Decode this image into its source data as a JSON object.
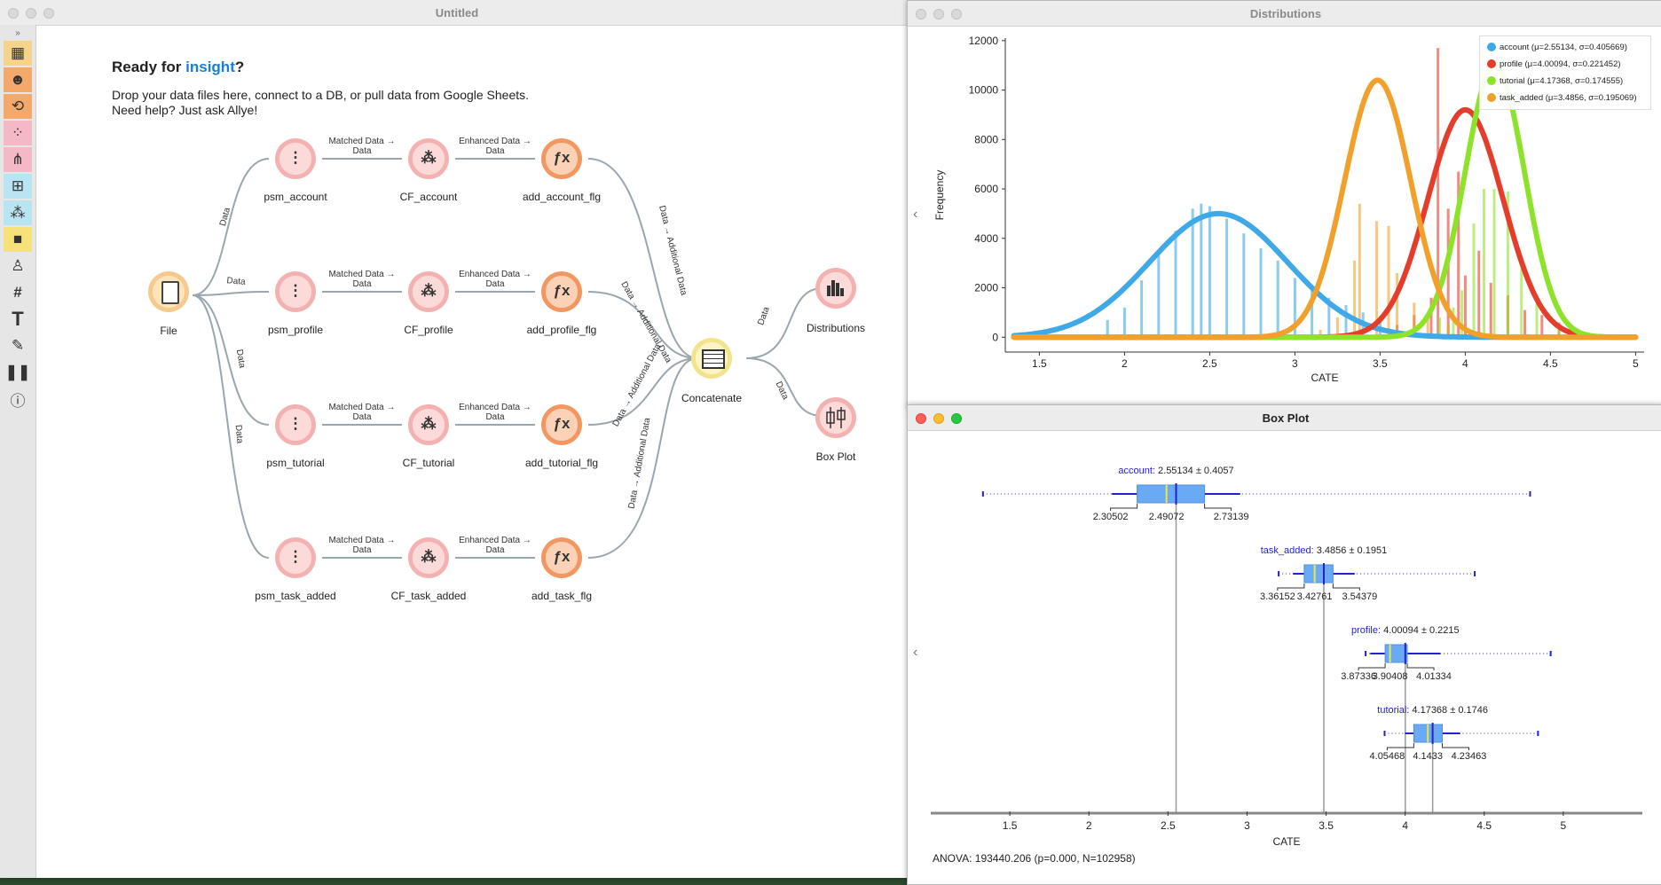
{
  "canvas_window": {
    "title": "Untitled",
    "welcome": {
      "title_prefix": "Ready for ",
      "title_accent": "insight",
      "title_suffix": "?",
      "line1": "Drop your data files here, connect to a DB, or pull data from Google Sheets.",
      "line2": "Need help? Just ask Allye!"
    },
    "toolbar_icons": [
      "expand-icon",
      "table-icon",
      "avatar-icon",
      "transform-icon",
      "scatter-icon",
      "tree-icon",
      "grid-icon",
      "cluster-icon",
      "cube-icon",
      "person-icon",
      "hash-icon",
      "text-icon",
      "pen-icon",
      "pause-icon",
      "help-icon"
    ],
    "nodes": {
      "file": "File",
      "psm_account": "psm_account",
      "cf_account": "CF_account",
      "add_account": "add_account_flg",
      "psm_profile": "psm_profile",
      "cf_profile": "CF_profile",
      "add_profile": "add_profile_flg",
      "psm_tutorial": "psm_tutorial",
      "cf_tutorial": "CF_tutorial",
      "add_tutorial": "add_tutorial_flg",
      "psm_task": "psm_task_added",
      "cf_task": "CF_task_added",
      "add_task": "add_task_flg",
      "concatenate": "Concatenate",
      "distributions": "Distributions",
      "boxplot": "Box Plot"
    },
    "edge_labels": {
      "data": "Data",
      "matched_1": "Matched Data →",
      "matched_2": "Data",
      "enhanced_1": "Enhanced Data →",
      "enhanced_2": "Data",
      "additional": "Data → Additional Data"
    }
  },
  "distributions_window": {
    "title": "Distributions",
    "chart_data": {
      "type": "bar",
      "xlabel": "CATE",
      "ylabel": "Frequency",
      "xlim": [
        1.3,
        5.05
      ],
      "ylim": [
        -600,
        12100
      ],
      "xticks": [
        1.5,
        2,
        2.5,
        3,
        3.5,
        4,
        4.5,
        5
      ],
      "yticks": [
        0,
        2000,
        4000,
        6000,
        8000,
        10000,
        12000
      ],
      "legend_position": "top-right",
      "series": [
        {
          "name": "account (μ=2.55134, σ=0.405669)",
          "color": "#3fa9e8",
          "mu": 2.55134,
          "sigma": 0.405669,
          "peak": 5000,
          "bars": [
            [
              1.9,
              700
            ],
            [
              2.0,
              1200
            ],
            [
              2.1,
              2300
            ],
            [
              2.2,
              3400
            ],
            [
              2.3,
              4300
            ],
            [
              2.4,
              5200
            ],
            [
              2.45,
              5400
            ],
            [
              2.5,
              5300
            ],
            [
              2.6,
              4800
            ],
            [
              2.7,
              4200
            ],
            [
              2.8,
              3600
            ],
            [
              2.9,
              3100
            ],
            [
              3.0,
              2400
            ],
            [
              3.1,
              1900
            ],
            [
              3.2,
              1600
            ],
            [
              3.3,
              1300
            ],
            [
              3.4,
              1000
            ],
            [
              3.5,
              800
            ]
          ]
        },
        {
          "name": "profile (μ=4.00094, σ=0.221452)",
          "color": "#e53d2b",
          "mu": 4.00094,
          "sigma": 0.221452,
          "peak": 9200,
          "bars": [
            [
              3.6,
              500
            ],
            [
              3.7,
              900
            ],
            [
              3.8,
              1600
            ],
            [
              3.84,
              11700
            ],
            [
              3.9,
              5200
            ],
            [
              3.96,
              6700
            ],
            [
              4.0,
              2500
            ],
            [
              4.08,
              3500
            ],
            [
              4.15,
              2200
            ],
            [
              4.25,
              1700
            ],
            [
              4.35,
              1100
            ],
            [
              4.45,
              900
            ],
            [
              4.55,
              600
            ]
          ]
        },
        {
          "name": "tutorial (μ=4.17368, σ=0.174555)",
          "color": "#8de22a",
          "mu": 4.17368,
          "sigma": 0.174555,
          "peak": 11000,
          "bars": [
            [
              3.85,
              800
            ],
            [
              3.93,
              1200
            ],
            [
              3.98,
              1900
            ],
            [
              4.05,
              4600
            ],
            [
              4.11,
              6000
            ],
            [
              4.17,
              6000
            ],
            [
              4.25,
              5900
            ],
            [
              4.33,
              2800
            ],
            [
              4.42,
              1500
            ],
            [
              4.55,
              500
            ]
          ]
        },
        {
          "name": "task_added (μ=3.4856, σ=0.195069)",
          "color": "#f2a02c",
          "mu": 3.4856,
          "sigma": 0.195069,
          "peak": 10400,
          "bars": [
            [
              3.15,
              300
            ],
            [
              3.25,
              800
            ],
            [
              3.35,
              3100
            ],
            [
              3.38,
              5400
            ],
            [
              3.48,
              4700
            ],
            [
              3.55,
              4500
            ],
            [
              3.6,
              2600
            ],
            [
              3.7,
              1400
            ],
            [
              3.78,
              1000
            ],
            [
              3.9,
              500
            ]
          ]
        }
      ]
    }
  },
  "boxplot_window": {
    "title": "Box Plot",
    "anova": "ANOVA: 193440.206 (p=0.000, N=102958)",
    "chart_data": {
      "type": "box",
      "xlabel": "CATE",
      "xlim": [
        1.0,
        5.5
      ],
      "xticks": [
        1.5,
        2,
        2.5,
        3,
        3.5,
        4,
        4.5,
        5
      ],
      "series": [
        {
          "name": "account",
          "stat": "2.55134 ± 0.4057",
          "mean": 2.55134,
          "sd": 0.4057,
          "q1": 2.30502,
          "median": 2.49072,
          "q3": 2.73139,
          "min": 1.33,
          "max": 4.79,
          "labels": [
            "2.30502",
            "2.49072",
            "2.73139"
          ]
        },
        {
          "name": "task_added",
          "stat": "3.4856 ± 0.1951",
          "mean": 3.4856,
          "sd": 0.1951,
          "q1": 3.36152,
          "median": 3.42761,
          "q3": 3.54379,
          "min": 3.2,
          "max": 4.44,
          "labels": [
            "3.36152",
            "3.42761",
            "3.54379"
          ]
        },
        {
          "name": "profile",
          "stat": "4.00094 ± 0.2215",
          "mean": 4.00094,
          "sd": 0.2215,
          "q1": 3.87336,
          "median": 3.90408,
          "q3": 4.01334,
          "min": 3.75,
          "max": 4.92,
          "labels": [
            "3.87336",
            "3.90408",
            "4.01334"
          ]
        },
        {
          "name": "tutorial",
          "stat": "4.17368 ± 0.1746",
          "mean": 4.17368,
          "sd": 0.1746,
          "q1": 4.05468,
          "median": 4.1433,
          "q3": 4.23463,
          "min": 3.87,
          "max": 4.84,
          "labels": [
            "4.05468",
            "4.1433",
            "4.23463"
          ]
        }
      ]
    }
  }
}
